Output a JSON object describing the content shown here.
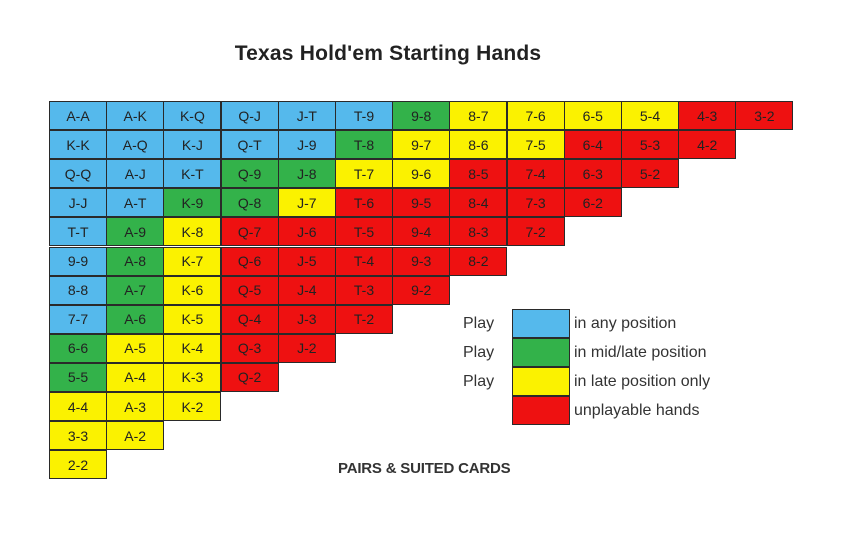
{
  "chart_data": {
    "type": "table",
    "title": "Texas Hold'em Starting Hands",
    "footer": "PAIRS & SUITED CARDS",
    "colors": {
      "B": "#55b9ec",
      "G": "#33b24a",
      "Y": "#fbf200",
      "R": "#ee1111"
    },
    "rows": [
      {
        "cells": [
          "A-A",
          "A-K",
          "K-Q",
          "Q-J",
          "J-T",
          "T-9",
          "9-8",
          "8-7",
          "7-6",
          "6-5",
          "5-4",
          "4-3",
          "3-2"
        ],
        "colors": [
          "B",
          "B",
          "B",
          "B",
          "B",
          "B",
          "G",
          "Y",
          "Y",
          "Y",
          "Y",
          "R",
          "R"
        ]
      },
      {
        "cells": [
          "K-K",
          "A-Q",
          "K-J",
          "Q-T",
          "J-9",
          "T-8",
          "9-7",
          "8-6",
          "7-5",
          "6-4",
          "5-3",
          "4-2"
        ],
        "colors": [
          "B",
          "B",
          "B",
          "B",
          "B",
          "G",
          "Y",
          "Y",
          "Y",
          "R",
          "R",
          "R"
        ]
      },
      {
        "cells": [
          "Q-Q",
          "A-J",
          "K-T",
          "Q-9",
          "J-8",
          "T-7",
          "9-6",
          "8-5",
          "7-4",
          "6-3",
          "5-2"
        ],
        "colors": [
          "B",
          "B",
          "B",
          "G",
          "G",
          "Y",
          "Y",
          "R",
          "R",
          "R",
          "R"
        ]
      },
      {
        "cells": [
          "J-J",
          "A-T",
          "K-9",
          "Q-8",
          "J-7",
          "T-6",
          "9-5",
          "8-4",
          "7-3",
          "6-2"
        ],
        "colors": [
          "B",
          "B",
          "G",
          "G",
          "Y",
          "R",
          "R",
          "R",
          "R",
          "R"
        ]
      },
      {
        "cells": [
          "T-T",
          "A-9",
          "K-8",
          "Q-7",
          "J-6",
          "T-5",
          "9-4",
          "8-3",
          "7-2"
        ],
        "colors": [
          "B",
          "G",
          "Y",
          "R",
          "R",
          "R",
          "R",
          "R",
          "R"
        ]
      },
      {
        "cells": [
          "9-9",
          "A-8",
          "K-7",
          "Q-6",
          "J-5",
          "T-4",
          "9-3",
          "8-2"
        ],
        "colors": [
          "B",
          "G",
          "Y",
          "R",
          "R",
          "R",
          "R",
          "R"
        ]
      },
      {
        "cells": [
          "8-8",
          "A-7",
          "K-6",
          "Q-5",
          "J-4",
          "T-3",
          "9-2"
        ],
        "colors": [
          "B",
          "G",
          "Y",
          "R",
          "R",
          "R",
          "R"
        ]
      },
      {
        "cells": [
          "7-7",
          "A-6",
          "K-5",
          "Q-4",
          "J-3",
          "T-2"
        ],
        "colors": [
          "B",
          "G",
          "Y",
          "R",
          "R",
          "R"
        ]
      },
      {
        "cells": [
          "6-6",
          "A-5",
          "K-4",
          "Q-3",
          "J-2"
        ],
        "colors": [
          "G",
          "Y",
          "Y",
          "R",
          "R"
        ]
      },
      {
        "cells": [
          "5-5",
          "A-4",
          "K-3",
          "Q-2"
        ],
        "colors": [
          "G",
          "Y",
          "Y",
          "R"
        ]
      },
      {
        "cells": [
          "4-4",
          "A-3",
          "K-2"
        ],
        "colors": [
          "Y",
          "Y",
          "Y"
        ]
      },
      {
        "cells": [
          "3-3",
          "A-2"
        ],
        "colors": [
          "Y",
          "Y"
        ]
      },
      {
        "cells": [
          "2-2"
        ],
        "colors": [
          "Y"
        ]
      }
    ],
    "legend": [
      {
        "prefix": "Play",
        "color": "B",
        "label": "in any position"
      },
      {
        "prefix": "Play",
        "color": "G",
        "label": "in mid/late position"
      },
      {
        "prefix": "Play",
        "color": "Y",
        "label": "in late position only"
      },
      {
        "prefix": "",
        "color": "R",
        "label": "unplayable hands"
      }
    ]
  }
}
